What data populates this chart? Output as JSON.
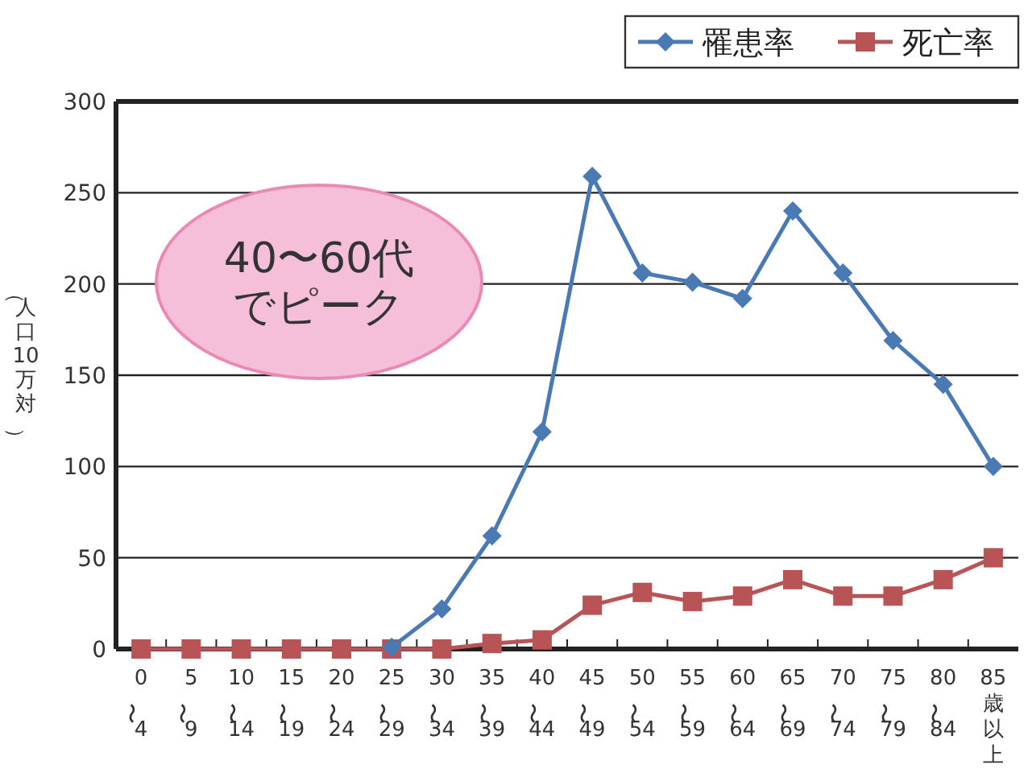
{
  "chart_data": {
    "type": "line",
    "ylabel": "（人口10万対）",
    "categories": [
      "0〜4",
      "5〜9",
      "10〜14",
      "15〜19",
      "20〜24",
      "25〜29",
      "30〜34",
      "35〜39",
      "40〜44",
      "45〜49",
      "50〜54",
      "55〜59",
      "60〜64",
      "65〜69",
      "70〜74",
      "75〜79",
      "80〜84",
      "85歳以上"
    ],
    "series": [
      {
        "name": "罹患率",
        "color": "#4a7ab4",
        "marker": "diamond",
        "values": [
          null,
          null,
          null,
          null,
          null,
          1,
          22,
          62,
          119,
          259,
          206,
          201,
          192,
          240,
          206,
          169,
          145,
          100
        ]
      },
      {
        "name": "死亡率",
        "color": "#b85456",
        "marker": "square",
        "values": [
          0,
          0,
          0,
          0,
          0,
          0,
          0,
          3,
          5,
          24,
          31,
          26,
          29,
          38,
          29,
          29,
          38,
          50
        ]
      }
    ],
    "ylim": [
      0,
      300
    ],
    "yticks": [
      0,
      50,
      100,
      150,
      200,
      250,
      300
    ],
    "grid": "y",
    "legend": "top right",
    "annotations": [
      "40〜60代でピーク"
    ]
  }
}
